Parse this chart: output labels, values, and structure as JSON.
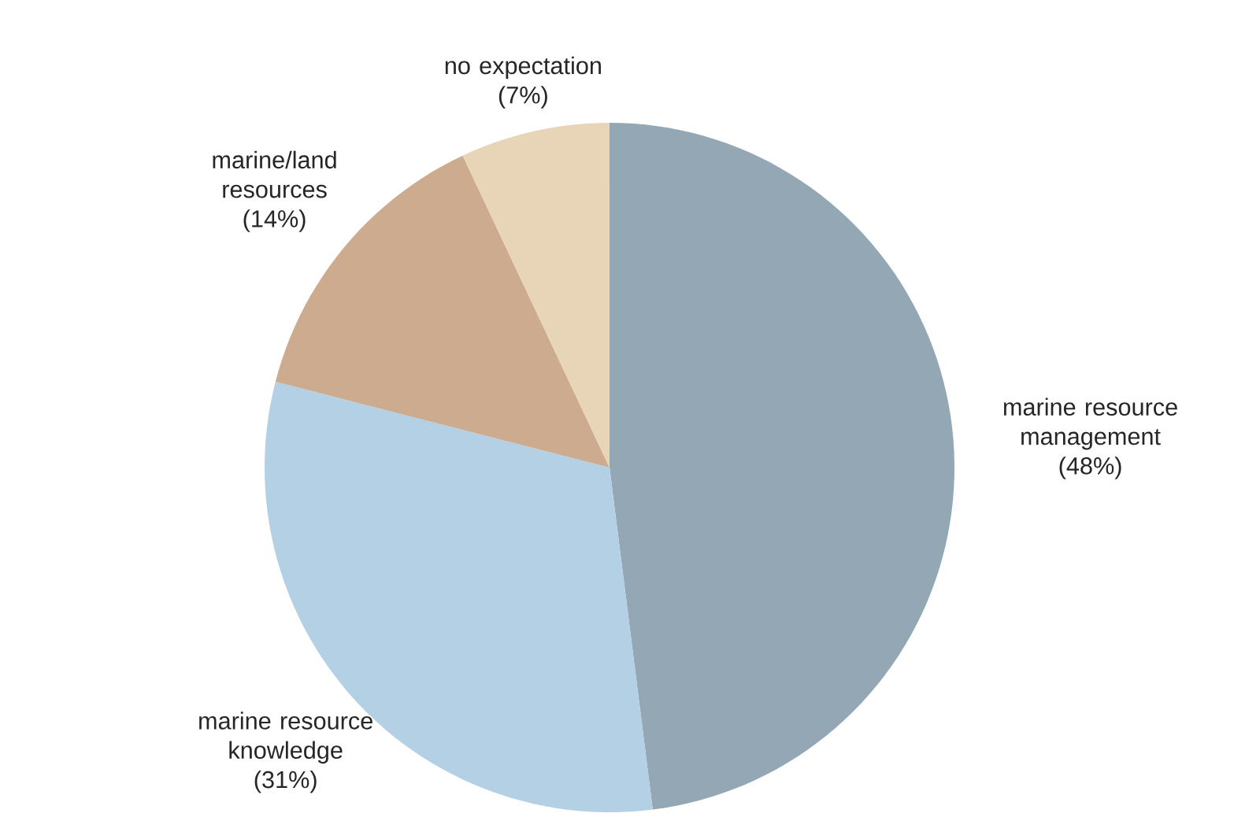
{
  "chart_data": {
    "type": "pie",
    "categories": [
      "marine resource management",
      "marine resource knowledge",
      "marine/land resources",
      "no expectation"
    ],
    "values": [
      48,
      31,
      14,
      7
    ],
    "value_labels": [
      "(48%)",
      "(31%)",
      "(14%)",
      "(7%)"
    ],
    "colors": [
      "#93a7b4",
      "#b4d0e4",
      "#cdab8f",
      "#e8d4b6"
    ]
  }
}
